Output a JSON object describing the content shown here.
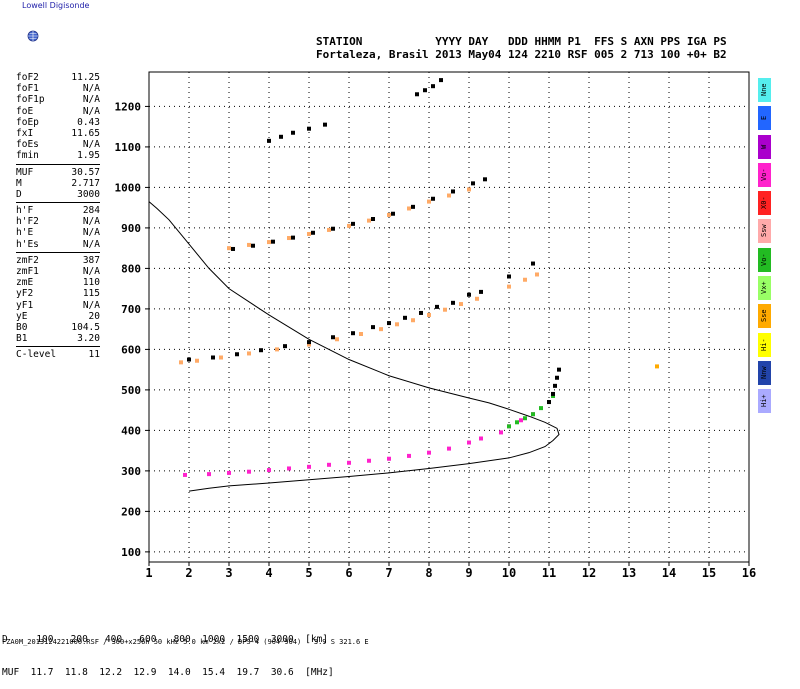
{
  "logo_text": "Lowell Digisonde",
  "header": {
    "line1": "STATION           YYYY DAY   DDD HHMM P1  FFS S AXN PPS IGA PS",
    "line2": "Fortaleza, Brasil 2013 May04 124 2210 RSF 005 2 713 100 +0+ B2"
  },
  "params": [
    [
      [
        "foF2",
        "11.25"
      ],
      [
        "foF1",
        "N/A"
      ],
      [
        "foF1p",
        "N/A"
      ],
      [
        "foE",
        "N/A"
      ],
      [
        "foEp",
        "0.43"
      ],
      [
        "fxI",
        "11.65"
      ],
      [
        "foEs",
        "N/A"
      ],
      [
        "fmin",
        "1.95"
      ]
    ],
    [
      [
        "MUF",
        "30.57"
      ],
      [
        "M",
        "2.717"
      ],
      [
        "D",
        "3000"
      ]
    ],
    [
      [
        "h'F",
        "284"
      ],
      [
        "h'F2",
        "N/A"
      ],
      [
        "h'E",
        "N/A"
      ],
      [
        "h'Es",
        "N/A"
      ]
    ],
    [
      [
        "zmF2",
        "387"
      ],
      [
        "zmF1",
        "N/A"
      ],
      [
        "zmE",
        "110"
      ],
      [
        "yF2",
        "115"
      ],
      [
        "yF1",
        "N/A"
      ],
      [
        "yE",
        "20"
      ],
      [
        "B0",
        "104.5"
      ],
      [
        "B1",
        "3.20"
      ]
    ],
    [
      [
        "C-level",
        "11"
      ]
    ]
  ],
  "legend": [
    {
      "label": "Nne",
      "color": "#55eeee"
    },
    {
      "label": "E",
      "color": "#2266ff"
    },
    {
      "label": "W",
      "color": "#aa00cc"
    },
    {
      "label": "Vo-",
      "color": "#ff22cc"
    },
    {
      "label": "X0-",
      "color": "#ff2222"
    },
    {
      "label": "Ssw",
      "color": "#ffaaaa"
    },
    {
      "label": "Vo-",
      "color": "#22bb22"
    },
    {
      "label": "Vx+",
      "color": "#99ff66"
    },
    {
      "label": "Sse",
      "color": "#ffaa00"
    },
    {
      "label": "Hi-",
      "color": "#ffff00"
    },
    {
      "label": "Nnw",
      "color": "#2244aa"
    },
    {
      "label": "Hi+",
      "color": "#aaaaff"
    }
  ],
  "bottom": {
    "row1": "D     100   200   400   600   800  1000  1500  3000  [km]",
    "row2": "MUF  11.7  11.8  12.2  12.9  14.0  15.4  19.7  30.6  [MHz]",
    "filename": "FZA0M_2013124221000.RSF / 300+x256h 50 kHz 5.0 km 2x2 / DPS-4 (904-904)   3.9 S 321.6 E"
  },
  "chart_data": {
    "type": "scatter",
    "xlim": [
      1,
      16
    ],
    "ylim": [
      75,
      1285
    ],
    "x_ticks": [
      1,
      2,
      3,
      4,
      5,
      6,
      7,
      8,
      9,
      10,
      11,
      12,
      13,
      14,
      15,
      16
    ],
    "y_ticks": [
      100,
      200,
      300,
      400,
      500,
      600,
      700,
      800,
      900,
      1000,
      1100,
      1200
    ],
    "grid": true,
    "series": [
      {
        "color": "#ff22cc",
        "x": [
          1.9,
          2.5,
          3.0,
          3.5,
          4.0,
          4.5,
          5.0,
          5.5,
          6.0,
          6.5,
          7.0,
          7.5,
          8.0,
          8.5,
          9.0,
          9.3,
          9.8,
          10.0,
          10.3,
          10.6
        ],
        "y": [
          290,
          292,
          295,
          298,
          302,
          306,
          310,
          315,
          320,
          325,
          330,
          337,
          345,
          355,
          370,
          380,
          395,
          410,
          425,
          440
        ]
      },
      {
        "color": "#22bb22",
        "x": [
          10.0,
          10.2,
          10.4,
          10.6,
          10.8,
          11.0,
          11.1
        ],
        "y": [
          410,
          420,
          430,
          440,
          455,
          470,
          485
        ]
      },
      {
        "color": "#000000",
        "x": [
          11.0,
          11.1,
          11.15,
          11.2,
          11.25
        ],
        "y": [
          470,
          490,
          510,
          530,
          550
        ]
      },
      {
        "color": "#ffaa66",
        "x": [
          1.8,
          2.2,
          2.8,
          3.5,
          4.2,
          5.0,
          5.7,
          6.3,
          6.8,
          7.2,
          7.6,
          8.0,
          8.4,
          8.8,
          9.2,
          10.0,
          10.4,
          10.7
        ],
        "y": [
          568,
          572,
          580,
          590,
          600,
          612,
          625,
          638,
          650,
          662,
          672,
          685,
          698,
          712,
          725,
          755,
          772,
          785
        ]
      },
      {
        "color": "#000000",
        "x": [
          2.0,
          2.6,
          3.2,
          3.8,
          4.4,
          5.0,
          5.6,
          6.1,
          6.6,
          7.0,
          7.4,
          7.8,
          8.2,
          8.6,
          9.0,
          9.3,
          10.0,
          10.6
        ],
        "y": [
          575,
          580,
          588,
          598,
          608,
          618,
          630,
          640,
          655,
          665,
          678,
          690,
          705,
          715,
          735,
          742,
          780,
          812
        ]
      },
      {
        "color": "#ffaa66",
        "x": [
          3.0,
          3.5,
          4.0,
          4.5,
          5.0,
          5.5,
          6.0,
          6.5,
          7.0,
          7.5,
          8.0,
          8.5,
          9.0
        ],
        "y": [
          850,
          858,
          865,
          875,
          885,
          895,
          905,
          918,
          932,
          948,
          965,
          980,
          995
        ]
      },
      {
        "color": "#000000",
        "x": [
          3.1,
          3.6,
          4.1,
          4.6,
          5.1,
          5.6,
          6.1,
          6.6,
          7.1,
          7.6,
          8.1,
          8.6,
          9.1,
          9.4
        ],
        "y": [
          848,
          856,
          866,
          876,
          888,
          898,
          910,
          922,
          935,
          952,
          972,
          990,
          1010,
          1020
        ]
      },
      {
        "color": "#000000",
        "x": [
          4.0,
          4.3,
          4.6,
          5.0,
          5.4
        ],
        "y": [
          1115,
          1125,
          1135,
          1145,
          1155
        ]
      },
      {
        "color": "#000000",
        "x": [
          7.7,
          7.9,
          8.1,
          8.3
        ],
        "y": [
          1230,
          1240,
          1250,
          1265
        ]
      },
      {
        "color": "#ffaa00",
        "x": [
          13.7
        ],
        "y": [
          558
        ]
      },
      {
        "color": "#000000",
        "x": [
          2.0,
          2.5,
          3.0,
          4.0,
          5.0,
          6.0,
          7.0,
          8.0,
          9.0,
          10.0,
          10.5,
          10.9,
          11.1,
          11.25,
          11.2,
          10.9,
          10.5,
          10.0,
          9.5,
          9.0,
          8.0,
          7.0,
          6.0,
          5.0,
          4.0,
          3.0,
          2.5,
          2.0,
          1.5,
          1.2,
          1.0
        ],
        "y": [
          250,
          257,
          263,
          270,
          278,
          286,
          295,
          306,
          318,
          332,
          345,
          360,
          375,
          390,
          405,
          420,
          435,
          452,
          468,
          480,
          505,
          535,
          575,
          625,
          685,
          750,
          800,
          860,
          920,
          948,
          965
        ],
        "line": true
      }
    ]
  }
}
